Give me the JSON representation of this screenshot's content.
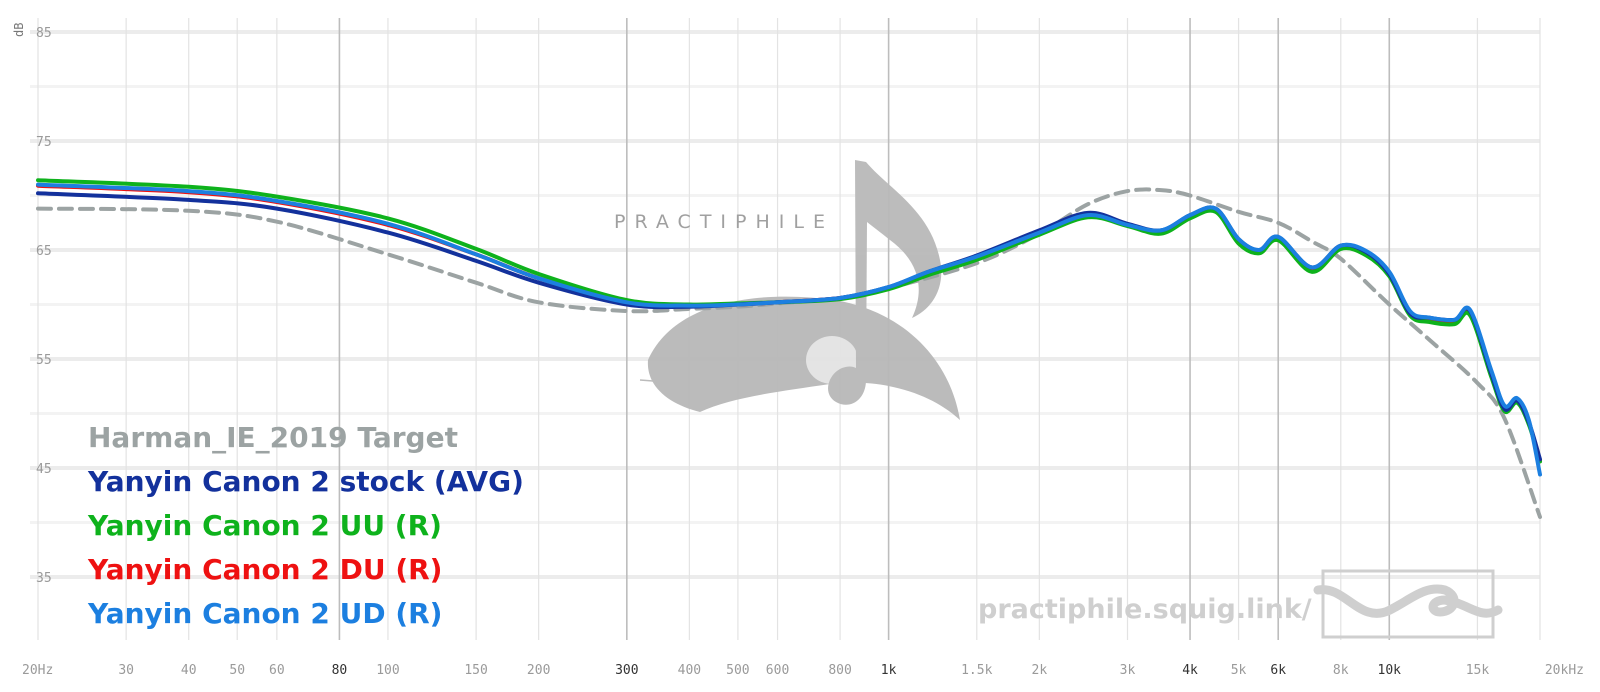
{
  "chart_data": {
    "type": "line",
    "ylabel": "dB",
    "x_scale": "log",
    "xlim": [
      20,
      20000
    ],
    "ylim": [
      30,
      86
    ],
    "y_ticks": [
      {
        "value": 85,
        "label": "85"
      },
      {
        "value": 75,
        "label": "75"
      },
      {
        "value": 65,
        "label": "65"
      },
      {
        "value": 55,
        "label": "55"
      },
      {
        "value": 45,
        "label": "45"
      },
      {
        "value": 35,
        "label": "35"
      }
    ],
    "x_ticks": [
      {
        "value": 20,
        "label": "20Hz",
        "major": false
      },
      {
        "value": 30,
        "label": "30",
        "major": false
      },
      {
        "value": 40,
        "label": "40",
        "major": false
      },
      {
        "value": 50,
        "label": "50",
        "major": false
      },
      {
        "value": 60,
        "label": "60",
        "major": false
      },
      {
        "value": 80,
        "label": "80",
        "major": true
      },
      {
        "value": 100,
        "label": "100",
        "major": false
      },
      {
        "value": 150,
        "label": "150",
        "major": false
      },
      {
        "value": 200,
        "label": "200",
        "major": false
      },
      {
        "value": 300,
        "label": "300",
        "major": true
      },
      {
        "value": 400,
        "label": "400",
        "major": false
      },
      {
        "value": 500,
        "label": "500",
        "major": false
      },
      {
        "value": 600,
        "label": "600",
        "major": false
      },
      {
        "value": 800,
        "label": "800",
        "major": false
      },
      {
        "value": 1000,
        "label": "1k",
        "major": true
      },
      {
        "value": 1500,
        "label": "1.5k",
        "major": false
      },
      {
        "value": 2000,
        "label": "2k",
        "major": false
      },
      {
        "value": 3000,
        "label": "3k",
        "major": false
      },
      {
        "value": 4000,
        "label": "4k",
        "major": true
      },
      {
        "value": 5000,
        "label": "5k",
        "major": false
      },
      {
        "value": 6000,
        "label": "6k",
        "major": true
      },
      {
        "value": 8000,
        "label": "8k",
        "major": false
      },
      {
        "value": 10000,
        "label": "10k",
        "major": true
      },
      {
        "value": 15000,
        "label": "15k",
        "major": false
      },
      {
        "value": 20000,
        "label": "20kHz",
        "major": false
      }
    ],
    "grid": true,
    "legend_position": "bottom-left",
    "series": [
      {
        "name": "Harman_IE_2019 Target",
        "color": "#9ca3a3",
        "dashed": true,
        "x": [
          20,
          40,
          60,
          100,
          150,
          200,
          300,
          400,
          500,
          600,
          800,
          1000,
          1500,
          2000,
          2500,
          3000,
          3500,
          4000,
          5000,
          6000,
          7000,
          8000,
          10000,
          12000,
          15000,
          17000,
          20000
        ],
        "y": [
          68.8,
          68.6,
          67.6,
          64.6,
          62.0,
          60.2,
          59.4,
          59.6,
          59.8,
          60.1,
          60.6,
          61.5,
          63.8,
          66.5,
          69.2,
          70.4,
          70.5,
          70.0,
          68.5,
          67.5,
          65.8,
          64.2,
          60.0,
          56.8,
          52.8,
          49.5,
          40.5
        ]
      },
      {
        "name": "Yanyin Canon 2 stock (AVG)",
        "color": "#13319c",
        "dashed": false,
        "x": [
          20,
          40,
          60,
          100,
          150,
          200,
          300,
          400,
          500,
          600,
          800,
          1000,
          1200,
          1500,
          2000,
          2500,
          3000,
          3500,
          4000,
          4500,
          5000,
          5500,
          6000,
          7000,
          8000,
          9000,
          10000,
          11000,
          12000,
          13500,
          14500,
          16000,
          17000,
          18000,
          19000,
          20000
        ],
        "y": [
          70.2,
          69.6,
          68.8,
          66.6,
          64.0,
          62.0,
          60.0,
          59.8,
          60.0,
          60.2,
          60.6,
          61.6,
          63.0,
          64.5,
          66.8,
          68.4,
          67.4,
          66.8,
          68.2,
          68.8,
          66.0,
          65.0,
          66.2,
          63.4,
          65.4,
          64.8,
          62.8,
          59.2,
          58.8,
          58.6,
          59.4,
          53.6,
          50.4,
          51.2,
          49.2,
          45.8
        ]
      },
      {
        "name": "Yanyin Canon 2 UU (R)",
        "color": "#0eb21c",
        "dashed": false,
        "x": [
          20,
          40,
          60,
          100,
          150,
          200,
          300,
          400,
          500,
          600,
          800,
          1000,
          1200,
          1500,
          2000,
          2500,
          3000,
          3500,
          4000,
          4500,
          5000,
          5500,
          6000,
          7000,
          8000,
          9000,
          10000,
          11000,
          12000,
          13500,
          14500,
          16000,
          17000,
          18000,
          19000,
          20000
        ],
        "y": [
          71.4,
          70.8,
          69.9,
          67.9,
          65.1,
          62.8,
          60.4,
          60.0,
          60.1,
          60.2,
          60.5,
          61.4,
          62.7,
          64.1,
          66.4,
          68.0,
          67.2,
          66.5,
          67.9,
          68.5,
          65.6,
          64.7,
          65.9,
          63.0,
          65.1,
          64.5,
          62.6,
          59.0,
          58.4,
          58.2,
          59.0,
          53.3,
          50.2,
          51.0,
          49.0,
          45.6
        ]
      },
      {
        "name": "Yanyin Canon 2 DU (R)",
        "color": "#ee1111",
        "dashed": false,
        "x": [
          20,
          40,
          60,
          100,
          150,
          200,
          300,
          400,
          500,
          600,
          800,
          1000,
          1200,
          1500,
          2000,
          2500,
          3000,
          3500,
          4000,
          4500,
          5000,
          5500,
          6000,
          7000,
          8000,
          9000,
          10000,
          11000,
          12000,
          13500,
          14500,
          16000,
          17000,
          18000,
          19000,
          20000
        ],
        "y": [
          70.9,
          70.3,
          69.4,
          67.3,
          64.6,
          62.4,
          60.2,
          59.9,
          60.0,
          60.2,
          60.6,
          61.5,
          62.9,
          64.3,
          66.6,
          68.2,
          67.3,
          66.7,
          68.1,
          68.7,
          65.9,
          64.9,
          66.1,
          63.3,
          65.3,
          64.7,
          62.7,
          59.1,
          58.6,
          58.4,
          59.2,
          53.5,
          50.3,
          51.1,
          49.1,
          45.7
        ]
      },
      {
        "name": "Yanyin Canon 2 UD (R)",
        "color": "#1c7fe0",
        "dashed": false,
        "x": [
          20,
          40,
          60,
          100,
          150,
          200,
          300,
          400,
          500,
          600,
          800,
          1000,
          1200,
          1500,
          2000,
          2500,
          3000,
          3500,
          4000,
          4500,
          5000,
          5500,
          6000,
          7000,
          8000,
          9000,
          10000,
          11000,
          12000,
          13500,
          14500,
          16000,
          17000,
          18000,
          19000,
          20000
        ],
        "y": [
          71.0,
          70.4,
          69.5,
          67.4,
          64.6,
          62.4,
          60.2,
          59.9,
          60.0,
          60.2,
          60.6,
          61.6,
          63.0,
          64.4,
          66.6,
          68.2,
          67.3,
          66.8,
          68.2,
          68.8,
          66.0,
          65.0,
          66.2,
          63.4,
          65.4,
          64.9,
          63.0,
          59.4,
          58.8,
          58.6,
          59.5,
          53.9,
          50.7,
          51.4,
          49.4,
          44.4
        ]
      }
    ]
  },
  "watermark": {
    "text": "PRACTIPHILE",
    "url": "practiphile.squig.link/"
  }
}
